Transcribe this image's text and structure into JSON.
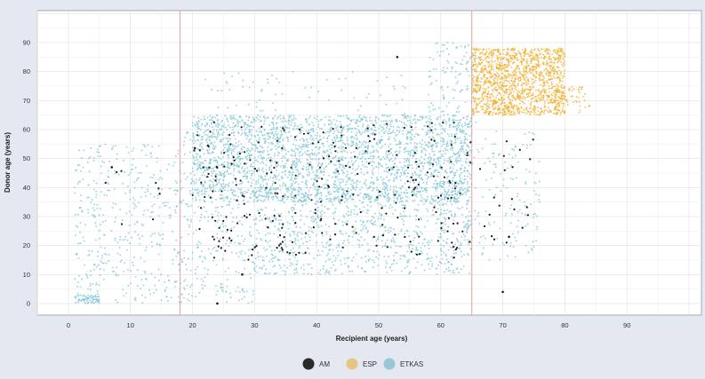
{
  "chart_data": {
    "type": "scatter",
    "title": "",
    "xlabel": "Recipient age (years)",
    "ylabel": "Donor age (years)",
    "xlim": [
      -5,
      102
    ],
    "ylim": [
      -4,
      101
    ],
    "x_ticks": [
      0,
      10,
      20,
      30,
      40,
      50,
      60,
      70,
      80,
      90
    ],
    "y_ticks": [
      0,
      10,
      20,
      30,
      40,
      50,
      60,
      70,
      80,
      90
    ],
    "grid": true,
    "legend_position": "bottom-center",
    "reference_lines_x": [
      18,
      65
    ],
    "reference_line_color": "#e8a0a0",
    "series": [
      {
        "name": "ETKAS",
        "color": "#7ec4d6",
        "legend_color": "#98c8d6",
        "clusters": [
          {
            "x_range": [
              20,
              65
            ],
            "y_range": [
              35,
              65
            ],
            "count": 2600
          },
          {
            "x_range": [
              30,
              65
            ],
            "y_range": [
              10,
              40
            ],
            "count": 900
          },
          {
            "x_range": [
              18,
              30
            ],
            "y_range": [
              0,
              60
            ],
            "count": 350
          },
          {
            "x_range": [
              1,
              18
            ],
            "y_range": [
              0,
              55
            ],
            "count": 420
          },
          {
            "x_range": [
              1,
              5
            ],
            "y_range": [
              0,
              3
            ],
            "count": 60
          },
          {
            "x_range": [
              60,
              76
            ],
            "y_range": [
              15,
              60
            ],
            "count": 200
          },
          {
            "x_range": [
              58,
              66
            ],
            "y_range": [
              62,
              90
            ],
            "count": 120
          },
          {
            "x_range": [
              22,
              55
            ],
            "y_range": [
              62,
              80
            ],
            "count": 70
          }
        ]
      },
      {
        "name": "ESP",
        "color": "#f0b030",
        "legend_color": "#e6c680",
        "clusters": [
          {
            "x_range": [
              65,
              80
            ],
            "y_range": [
              65,
              88
            ],
            "count": 1400
          },
          {
            "x_range": [
              78,
              84
            ],
            "y_range": [
              65,
              75
            ],
            "count": 60
          }
        ]
      },
      {
        "name": "AM",
        "color": "#1a1a1a",
        "legend_color": "#2a2a2a",
        "clusters": [
          {
            "x_range": [
              20,
              65
            ],
            "y_range": [
              15,
              63
            ],
            "count": 260
          },
          {
            "x_range": [
              65,
              76
            ],
            "y_range": [
              20,
              60
            ],
            "count": 20
          },
          {
            "x_range": [
              5,
              18
            ],
            "y_range": [
              20,
              55
            ],
            "count": 8
          }
        ],
        "points": [
          [
            53,
            85
          ],
          [
            70,
            4
          ],
          [
            24,
            0
          ],
          [
            28,
            10
          ],
          [
            71,
            23
          ],
          [
            7,
            47
          ]
        ]
      }
    ]
  }
}
